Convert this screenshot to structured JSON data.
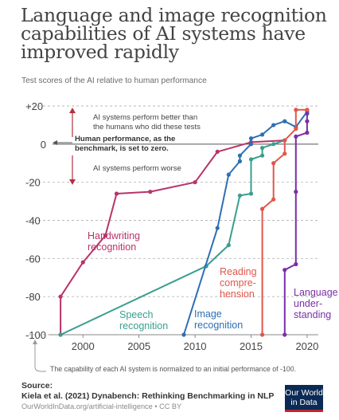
{
  "title": "Language and image recognition capabilities of AI systems have improved rapidly",
  "subtitle": "Test scores of the AI relative to human performance",
  "annotations": {
    "better": "AI systems perform better than the humans who did these tests",
    "human": "Human performance, as the benchmark, is set to zero.",
    "worse": "AI systems perform worse"
  },
  "footnote": "The capability of each AI system is normalized to an initial performance of -100.",
  "source_label": "Source:",
  "source_text": "Kiela et al. (2021) Dynabench: Rethinking Benchmarking in NLP",
  "source_url": "OurWorldInData.org/artificial-intelligence • CC BY",
  "logo": {
    "line1": "Our World",
    "line2": "in Data",
    "bg": "#0b2a55",
    "stripe": "#c0242c"
  },
  "colors": {
    "grid": "#b8b8b8",
    "axis": "#888888",
    "zero_line": "#555555",
    "arrow": "#b5303f",
    "text": "#444444"
  },
  "chart_data": {
    "type": "line",
    "title": "Language and image recognition capabilities of AI systems have improved rapidly",
    "subtitle": "Test scores of the AI relative to human performance",
    "xlabel": "",
    "ylabel": "",
    "xlim": [
      1997,
      2021
    ],
    "ylim": [
      -100,
      20
    ],
    "yticks": [
      20,
      0,
      -20,
      -40,
      -60,
      -80,
      -100
    ],
    "ytick_labels": [
      "+20",
      "0",
      "-20",
      "-40",
      "-60",
      "-80",
      "-100"
    ],
    "xticks": [
      2000,
      2005,
      2010,
      2015,
      2020
    ],
    "xtick_labels": [
      "2000",
      "2005",
      "2010",
      "2015",
      "2020"
    ],
    "grid": true,
    "series": [
      {
        "name": "Handwriting recognition",
        "color": "#b8336a",
        "points": [
          [
            1998,
            -100
          ],
          [
            1998,
            -80
          ],
          [
            2000,
            -62
          ],
          [
            2002,
            -48
          ],
          [
            2003,
            -26
          ],
          [
            2006,
            -25
          ],
          [
            2010,
            -20
          ],
          [
            2012,
            -4
          ],
          [
            2015,
            1
          ],
          [
            2018,
            2
          ]
        ]
      },
      {
        "name": "Speech recognition",
        "color": "#3a9e8f",
        "points": [
          [
            1998,
            -100
          ],
          [
            2011,
            -64
          ],
          [
            2013,
            -53
          ],
          [
            2014,
            -27
          ],
          [
            2015,
            -26
          ],
          [
            2015,
            -8
          ],
          [
            2016,
            -6
          ],
          [
            2016,
            -2
          ],
          [
            2017,
            0
          ],
          [
            2018,
            2
          ]
        ]
      },
      {
        "name": "Image recognition",
        "color": "#2d6fb3",
        "points": [
          [
            2009,
            -100
          ],
          [
            2012,
            -44
          ],
          [
            2013,
            -16
          ],
          [
            2014,
            -9
          ],
          [
            2014,
            -6
          ],
          [
            2015,
            0
          ],
          [
            2015,
            3
          ],
          [
            2016,
            5
          ],
          [
            2017,
            10
          ],
          [
            2018,
            12
          ],
          [
            2019,
            9
          ],
          [
            2020,
            17
          ]
        ]
      },
      {
        "name": "Reading comprehension",
        "color": "#e0574a",
        "points": [
          [
            2016,
            -100
          ],
          [
            2016,
            -34
          ],
          [
            2017,
            -29
          ],
          [
            2017,
            -10
          ],
          [
            2018,
            -5
          ],
          [
            2018,
            2
          ],
          [
            2019,
            8
          ],
          [
            2019,
            18
          ],
          [
            2020,
            18
          ]
        ]
      },
      {
        "name": "Language understanding",
        "color": "#7a2fa6",
        "points": [
          [
            2018,
            -100
          ],
          [
            2018,
            -66
          ],
          [
            2019,
            -63
          ],
          [
            2019,
            -25
          ],
          [
            2019,
            4
          ],
          [
            2020,
            6
          ],
          [
            2020,
            12
          ],
          [
            2020,
            16
          ]
        ]
      }
    ],
    "labels": [
      {
        "series": 0,
        "lines": [
          "Handwriting",
          "recognition"
        ]
      },
      {
        "series": 1,
        "lines": [
          "Speech",
          "recognition"
        ]
      },
      {
        "series": 2,
        "lines": [
          "Image",
          "recognition"
        ]
      },
      {
        "series": 3,
        "lines": [
          "Reading",
          "compre-",
          "hension"
        ]
      },
      {
        "series": 4,
        "lines": [
          "Language",
          "under-",
          "standing"
        ]
      }
    ]
  }
}
